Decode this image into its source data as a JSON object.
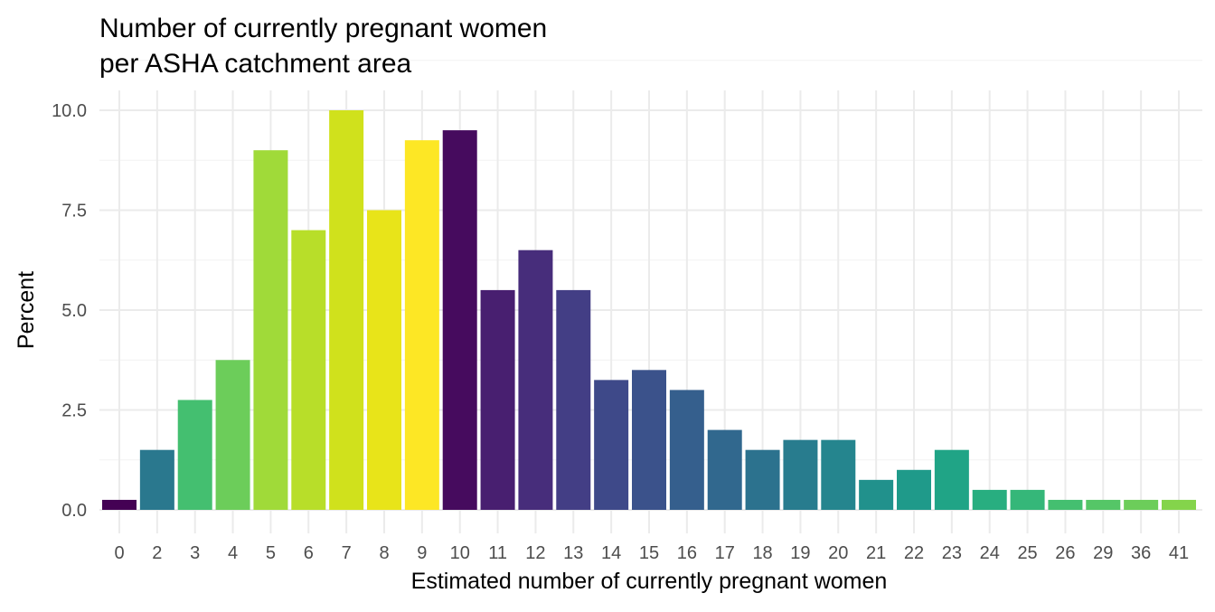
{
  "chart_data": {
    "type": "bar",
    "title_lines": [
      "Number of currently pregnant women",
      "per ASHA catchment area"
    ],
    "xlabel": "Estimated number of currently pregnant women",
    "ylabel": "Percent",
    "ylim": [
      0,
      10
    ],
    "yticks": [
      "0.0",
      "2.5",
      "5.0",
      "7.5",
      "10.0"
    ],
    "ytick_values": [
      0,
      2.5,
      5,
      7.5,
      10
    ],
    "grid": true,
    "legend": "none",
    "categories": [
      "0",
      "2",
      "3",
      "4",
      "5",
      "6",
      "7",
      "8",
      "9",
      "10",
      "11",
      "12",
      "13",
      "14",
      "15",
      "16",
      "17",
      "18",
      "19",
      "20",
      "21",
      "22",
      "23",
      "24",
      "25",
      "26",
      "29",
      "36",
      "41"
    ],
    "values": [
      0.25,
      1.5,
      2.75,
      3.75,
      9.0,
      7.0,
      10.0,
      7.5,
      9.25,
      9.5,
      5.5,
      6.5,
      5.5,
      3.25,
      3.5,
      3.0,
      2.0,
      1.5,
      1.75,
      1.75,
      0.75,
      1.0,
      1.5,
      0.5,
      0.5,
      0.25,
      0.25,
      0.25,
      0.25
    ],
    "colors": [
      "#440154",
      "#2a788e",
      "#44bf70",
      "#6ccd5a",
      "#a0da39",
      "#b8de29",
      "#d0e11c",
      "#e8e419",
      "#fde725",
      "#460b5e",
      "#481f70",
      "#472d7b",
      "#433e85",
      "#3e4989",
      "#3b528b",
      "#355f8d",
      "#31688e",
      "#2c728e",
      "#287c8e",
      "#25858e",
      "#21918c",
      "#1f9a8a",
      "#20a486",
      "#28ae80",
      "#35b779",
      "#44bf70",
      "#55c667",
      "#6ccd5a",
      "#84d44b"
    ]
  }
}
